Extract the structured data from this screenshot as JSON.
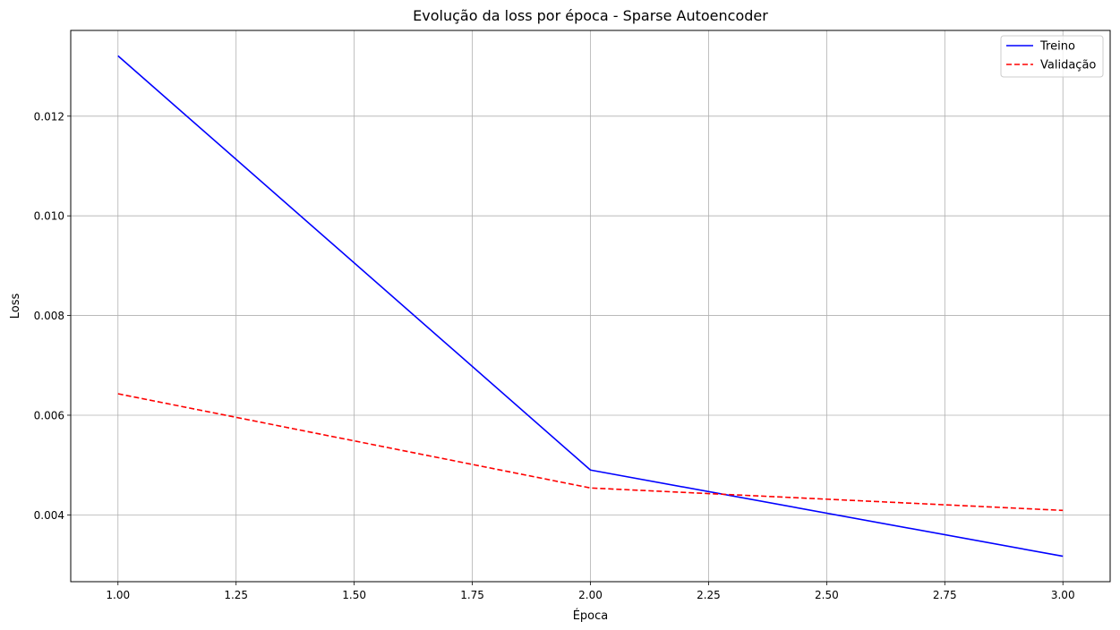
{
  "chart_data": {
    "type": "line",
    "title": "Evolução da loss por época - Sparse Autoencoder",
    "xlabel": "Época",
    "ylabel": "Loss",
    "xlim": [
      0.9,
      3.1
    ],
    "ylim": [
      0.00266,
      0.01372
    ],
    "grid": true,
    "legend_position": "top-right",
    "x_ticks": [
      1.0,
      1.25,
      1.5,
      1.75,
      2.0,
      2.25,
      2.5,
      2.75,
      3.0
    ],
    "x_tick_labels": [
      "1.00",
      "1.25",
      "1.50",
      "1.75",
      "2.00",
      "2.25",
      "2.50",
      "2.75",
      "3.00"
    ],
    "y_ticks": [
      0.004,
      0.006,
      0.008,
      0.01,
      0.012
    ],
    "y_tick_labels": [
      "0.004",
      "0.006",
      "0.008",
      "0.010",
      "0.012"
    ],
    "x": [
      1,
      2,
      3
    ],
    "series": [
      {
        "name": "Treino",
        "values": [
          0.01321,
          0.0049,
          0.00317
        ],
        "color": "#0000ff",
        "dash": "solid"
      },
      {
        "name": "Validação",
        "values": [
          0.00643,
          0.00454,
          0.00409
        ],
        "color": "#ff0000",
        "dash": "dashed"
      }
    ]
  }
}
